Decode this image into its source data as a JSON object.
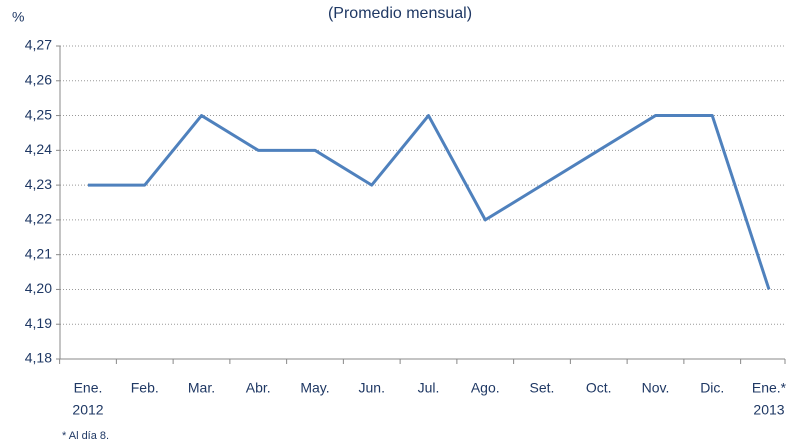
{
  "chart_data": {
    "type": "line",
    "title": "(Promedio mensual)",
    "y_label": "%",
    "categories": [
      "Ene.",
      "Feb.",
      "Mar.",
      "Abr.",
      "May.",
      "Jun.",
      "Jul.",
      "Ago.",
      "Set.",
      "Oct.",
      "Nov.",
      "Dic.",
      "Ene.*"
    ],
    "category_years": [
      "2012",
      null,
      null,
      null,
      null,
      null,
      null,
      null,
      null,
      null,
      null,
      null,
      "2013"
    ],
    "values": [
      4.23,
      4.23,
      4.25,
      4.24,
      4.24,
      4.23,
      4.25,
      4.22,
      4.23,
      4.24,
      4.25,
      4.25,
      4.2
    ],
    "color": "#4f81bd",
    "ylim": [
      4.18,
      4.27
    ],
    "yticks": [
      {
        "value": 4.18,
        "label": "4,18"
      },
      {
        "value": 4.19,
        "label": "4,19"
      },
      {
        "value": 4.2,
        "label": "4,20"
      },
      {
        "value": 4.21,
        "label": "4,21"
      },
      {
        "value": 4.22,
        "label": "4,22"
      },
      {
        "value": 4.23,
        "label": "4,23"
      },
      {
        "value": 4.24,
        "label": "4,24"
      },
      {
        "value": 4.25,
        "label": "4,25"
      },
      {
        "value": 4.26,
        "label": "4,26"
      },
      {
        "value": 4.27,
        "label": "4,27"
      }
    ],
    "grid": true,
    "footnote": "* Al día 8."
  }
}
